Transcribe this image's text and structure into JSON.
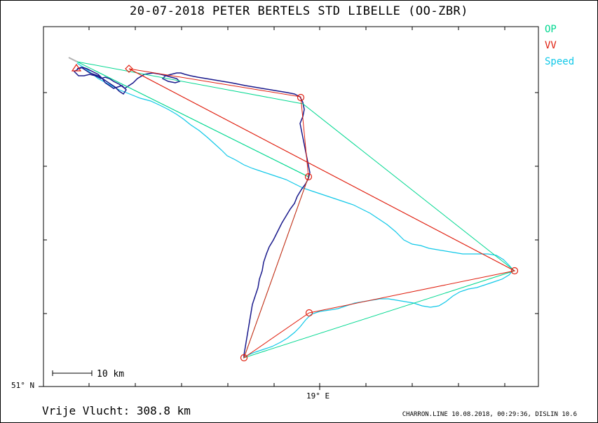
{
  "title": "20-07-2018   PETER BERTELS   STD LIBELLE (OO-ZBR)",
  "legend": [
    {
      "label": "OP",
      "color": "#00d890"
    },
    {
      "label": "VV",
      "color": "#e02010"
    },
    {
      "label": "Speed",
      "color": "#10c8e8"
    }
  ],
  "axes": {
    "lat_label": "51° N",
    "lon_label": "19° E"
  },
  "scale": {
    "label": "10 km"
  },
  "footer": {
    "distance_text": "Vrije Vlucht:  308.8 km",
    "credit": "CHARRON.LINE 10.08.2018, 00:29:36, DISLIN 10.6"
  },
  "colors": {
    "op": "#00d890",
    "vv": "#e02010",
    "speed": "#10c8e8",
    "track": "#1a1a8c",
    "frame": "#000000"
  }
}
